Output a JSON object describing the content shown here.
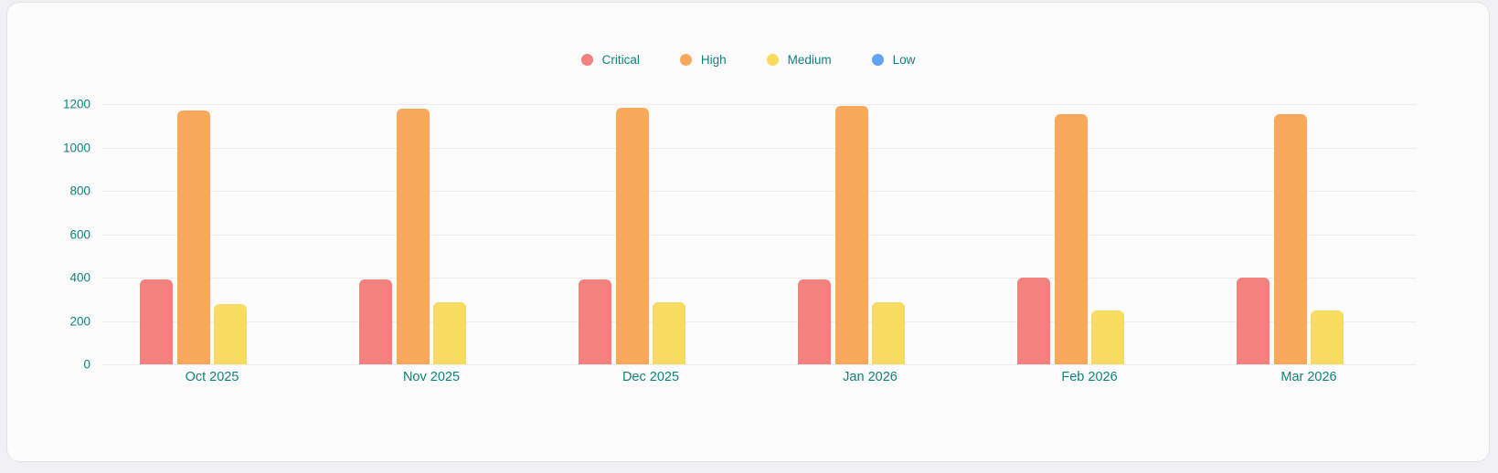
{
  "page": {
    "background": "#f1f1f3"
  },
  "card": {
    "background": "#fbfbfb",
    "border_color": "#e3e3e7"
  },
  "legend": {
    "text_color": "#0e837c",
    "position": "top-center"
  },
  "chart_data": {
    "type": "bar",
    "title": "",
    "xlabel": "",
    "ylabel": "",
    "categories": [
      "Oct 2025",
      "Nov 2025",
      "Dec 2025",
      "Jan 2026",
      "Feb 2026",
      "Mar 2026"
    ],
    "series": [
      {
        "name": "Critical",
        "color": "#F3827E",
        "values": [
          391,
          391,
          393,
          393,
          400,
          400
        ]
      },
      {
        "name": "High",
        "color": "#F9A95C",
        "values": [
          1172,
          1177,
          1183,
          1190,
          1155,
          1152
        ]
      },
      {
        "name": "Medium",
        "color": "#F8DC62",
        "values": [
          278,
          288,
          288,
          288,
          247,
          247
        ]
      },
      {
        "name": "Low",
        "color": "#62A3F5",
        "values": [
          0,
          0,
          0,
          0,
          0,
          0
        ]
      }
    ],
    "ylim": [
      0,
      1200
    ],
    "yticks": [
      0,
      200,
      400,
      600,
      800,
      1000,
      1200
    ],
    "grid": true,
    "gridline_color": "#ececee",
    "axis_text_color": "#0f837b",
    "legend_position": "top"
  }
}
